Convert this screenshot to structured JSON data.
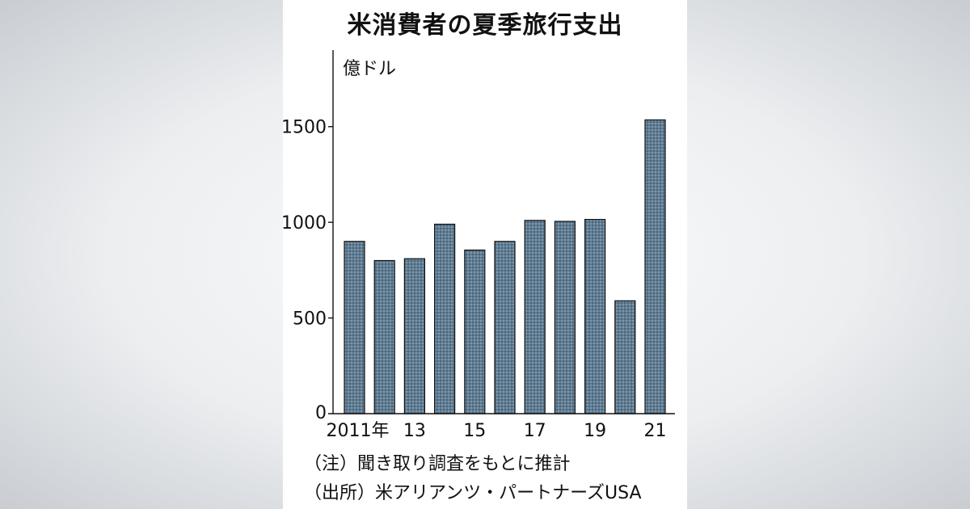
{
  "chart_data": {
    "type": "bar",
    "title": "米消費者の夏季旅行支出",
    "ylabel": "億ドル",
    "categories": [
      "2011",
      "2012",
      "2013",
      "2014",
      "2015",
      "2016",
      "2017",
      "2018",
      "2019",
      "2020",
      "2021"
    ],
    "values": [
      900,
      800,
      810,
      990,
      855,
      900,
      1010,
      1005,
      1015,
      590,
      1535
    ],
    "ylim": [
      0,
      1900
    ],
    "yticks": [
      0,
      500,
      1000,
      1500
    ],
    "x_tick_labels": [
      {
        "index": 0,
        "label": "2011年"
      },
      {
        "index": 2,
        "label": "13"
      },
      {
        "index": 4,
        "label": "15"
      },
      {
        "index": 6,
        "label": "17"
      },
      {
        "index": 8,
        "label": "19"
      },
      {
        "index": 10,
        "label": "21"
      }
    ],
    "grid": false,
    "bar_color": "#5e7b92"
  },
  "notes": {
    "note": "（注）聞き取り調査をもとに推計",
    "source": "（出所）米アリアンツ・パートナーズUSA"
  }
}
